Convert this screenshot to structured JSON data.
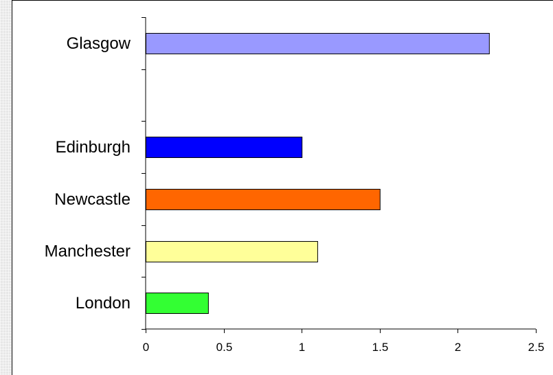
{
  "chart_data": {
    "type": "bar",
    "orientation": "horizontal",
    "title": "",
    "xlabel": "",
    "ylabel": "",
    "categories_top_to_bottom": [
      "Glasgow",
      "",
      "Edinburgh",
      "Newcastle",
      "Manchester",
      "London"
    ],
    "values": [
      2.2,
      null,
      1.0,
      1.5,
      1.1,
      0.4
    ],
    "colors": [
      "#9999ff",
      null,
      "#0000ff",
      "#ff6600",
      "#ffff99",
      "#33ff33"
    ],
    "xlim": [
      0,
      2.5
    ],
    "xticks": [
      0,
      0.5,
      1,
      1.5,
      2,
      2.5
    ],
    "xtick_labels": [
      "0",
      "0.5",
      "1",
      "1.5",
      "2",
      "2.5"
    ],
    "grid": false,
    "legend": "none"
  }
}
